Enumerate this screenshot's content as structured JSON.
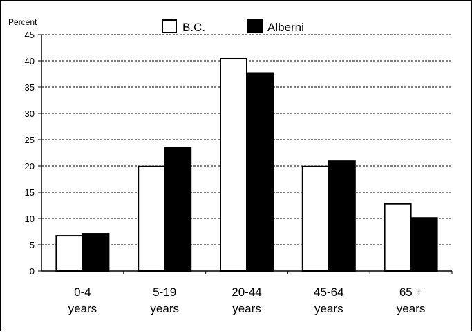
{
  "chart_data": {
    "type": "bar",
    "title": "",
    "ylabel": "Percent",
    "xlabel": "",
    "ylim": [
      0,
      45
    ],
    "yticks": [
      0,
      5,
      10,
      15,
      20,
      25,
      30,
      35,
      40,
      45
    ],
    "grid": true,
    "legend_position": "top",
    "categories": [
      [
        "0-4",
        "years"
      ],
      [
        "5-19",
        "years"
      ],
      [
        "20-44",
        "years"
      ],
      [
        "45-64",
        "years"
      ],
      [
        "65 +",
        "years"
      ]
    ],
    "series": [
      {
        "name": "B.C.",
        "color": "#ffffff",
        "values": [
          6.7,
          19.9,
          40.4,
          19.9,
          12.8
        ]
      },
      {
        "name": "Alberni",
        "color": "#000000",
        "values": [
          7.1,
          23.5,
          37.7,
          20.9,
          10.1
        ]
      }
    ]
  }
}
